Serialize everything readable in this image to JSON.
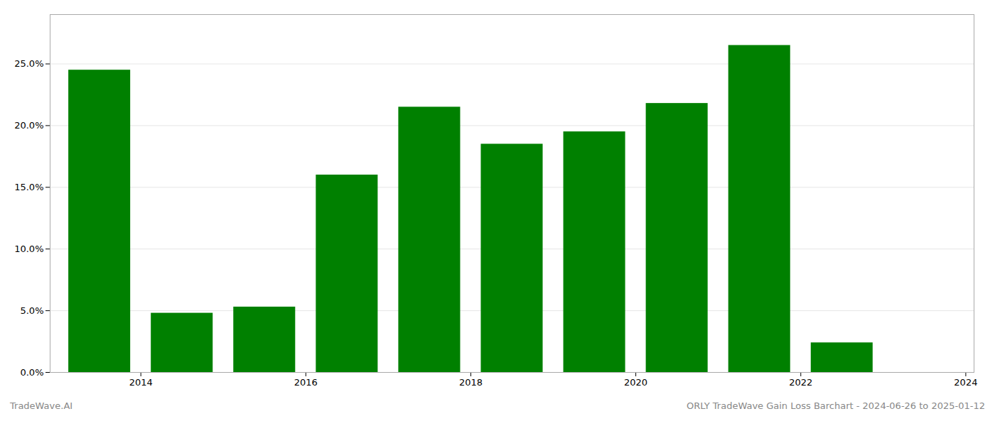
{
  "chart_data": {
    "type": "bar",
    "title": "ORLY TradeWave Gain Loss Barchart - 2024-06-26 to 2025-01-12",
    "annotations": [
      "TradeWave.AI"
    ],
    "x": [
      2013,
      2014,
      2015,
      2016,
      2017,
      2018,
      2019,
      2020,
      2021,
      2022,
      2023
    ],
    "values": [
      0.245,
      0.048,
      0.053,
      0.16,
      0.215,
      0.185,
      0.195,
      0.218,
      0.265,
      0.024,
      0.0
    ],
    "color": "#008000",
    "xlim": [
      2012.4,
      2023.6
    ],
    "xticks": [
      {
        "value": 2013.5,
        "label": "2014"
      },
      {
        "value": 2015.5,
        "label": "2016"
      },
      {
        "value": 2017.5,
        "label": "2018"
      },
      {
        "value": 2019.5,
        "label": "2020"
      },
      {
        "value": 2021.5,
        "label": "2022"
      },
      {
        "value": 2023.5,
        "label": "2024"
      }
    ],
    "ylim": [
      0,
      0.29
    ],
    "yticks": [
      {
        "value": 0.0,
        "label": "0.0%"
      },
      {
        "value": 0.05,
        "label": "5.0%"
      },
      {
        "value": 0.1,
        "label": "10.0%"
      },
      {
        "value": 0.15,
        "label": "15.0%"
      },
      {
        "value": 0.2,
        "label": "20.0%"
      },
      {
        "value": 0.25,
        "label": "25.0%"
      }
    ],
    "grid": true
  }
}
